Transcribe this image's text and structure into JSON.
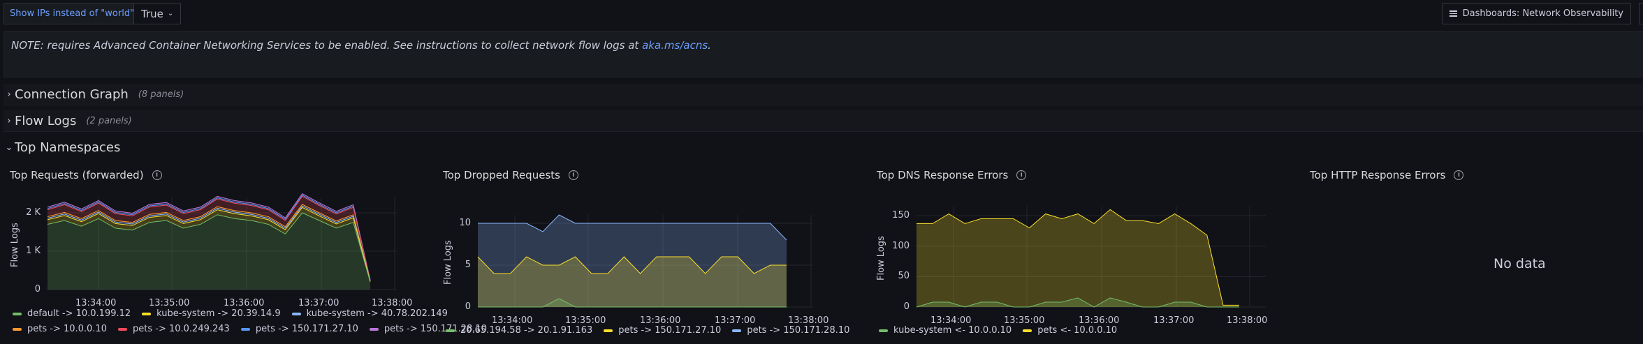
{
  "toolbar": {
    "variable_label": "Show IPs instead of \"world\"",
    "variable_value": "True",
    "dashboard_link": "Dashboards: Network Observability"
  },
  "note": {
    "text": "NOTE: requires Advanced Container Networking Services to be enabled. See instructions to collect network flow logs at ",
    "link": "aka.ms/acns",
    "suffix": "."
  },
  "rows": [
    {
      "title": "Connection Graph",
      "count": "(8 panels)",
      "collapsed": true
    },
    {
      "title": "Flow Logs",
      "count": "(2 panels)",
      "collapsed": true
    },
    {
      "title": "Top Namespaces",
      "count": "",
      "collapsed": false
    }
  ],
  "panels": [
    {
      "title": "Top Requests (forwarded)",
      "ylabel": "Flow Logs"
    },
    {
      "title": "Top Dropped Requests",
      "ylabel": "Flow Logs"
    },
    {
      "title": "Top DNS Response Errors",
      "ylabel": "Flow Logs"
    },
    {
      "title": "Top HTTP Response Errors",
      "no_data": "No data"
    }
  ],
  "chart_data": [
    {
      "type": "area",
      "title": "Top Requests (forwarded)",
      "ylabel": "Flow Logs",
      "ylim": [
        0,
        2400
      ],
      "yticks": [
        "0",
        "1 K",
        "2 K"
      ],
      "xticks": [
        "13:34:00",
        "13:35:00",
        "13:36:00",
        "13:37:00",
        "13:38:00"
      ],
      "stacked": true,
      "x": [
        0,
        1,
        2,
        3,
        4,
        5,
        6,
        7,
        8,
        9,
        10,
        11,
        12,
        13,
        14,
        15,
        16,
        17,
        18,
        19
      ],
      "series": [
        {
          "name": "default -> 10.0.199.12",
          "color": "#73bf69",
          "values": [
            1700,
            1800,
            1650,
            1850,
            1600,
            1550,
            1750,
            1800,
            1600,
            1700,
            1950,
            1850,
            1800,
            1700,
            1450,
            2000,
            1800,
            1600,
            1750,
            200
          ]
        },
        {
          "name": "kube-system -> 20.39.14.9",
          "color": "#fade2a",
          "values": [
            120,
            130,
            120,
            130,
            120,
            120,
            130,
            130,
            120,
            120,
            130,
            130,
            120,
            120,
            110,
            140,
            120,
            110,
            120,
            10
          ]
        },
        {
          "name": "kube-system -> 40.78.202.149",
          "color": "#8ab8ff",
          "values": [
            40,
            40,
            40,
            40,
            40,
            40,
            40,
            40,
            40,
            40,
            40,
            40,
            40,
            40,
            40,
            40,
            40,
            40,
            40,
            5
          ]
        },
        {
          "name": "pets -> 10.0.0.10",
          "color": "#ff9830",
          "values": [
            40,
            40,
            40,
            40,
            40,
            40,
            40,
            40,
            40,
            40,
            40,
            40,
            40,
            40,
            40,
            40,
            40,
            40,
            40,
            5
          ]
        },
        {
          "name": "pets -> 10.0.249.243",
          "color": "#f2495c",
          "values": [
            180,
            200,
            180,
            190,
            180,
            170,
            190,
            190,
            180,
            180,
            200,
            190,
            190,
            180,
            160,
            210,
            190,
            180,
            190,
            20
          ]
        },
        {
          "name": "pets -> 150.171.27.10",
          "color": "#5794f2",
          "values": [
            30,
            30,
            30,
            30,
            30,
            30,
            30,
            30,
            30,
            30,
            30,
            30,
            30,
            30,
            30,
            30,
            30,
            30,
            30,
            5
          ]
        },
        {
          "name": "pets -> 150.171.28.10",
          "color": "#b877d9",
          "values": [
            40,
            40,
            40,
            40,
            40,
            40,
            40,
            40,
            40,
            40,
            40,
            40,
            40,
            40,
            40,
            40,
            40,
            40,
            40,
            5
          ]
        }
      ]
    },
    {
      "type": "area",
      "title": "Top Dropped Requests",
      "ylabel": "Flow Logs",
      "ylim": [
        0,
        11
      ],
      "yticks": [
        "0",
        "5",
        "10"
      ],
      "xticks": [
        "13:34:00",
        "13:35:00",
        "13:36:00",
        "13:37:00",
        "13:38:00"
      ],
      "stacked": false,
      "x": [
        0,
        1,
        2,
        3,
        4,
        5,
        6,
        7,
        8,
        9,
        10,
        11,
        12,
        13,
        14,
        15,
        16,
        17,
        18,
        19
      ],
      "series": [
        {
          "name": "20.65.194.58 -> 20.1.91.163",
          "color": "#73bf69",
          "values": [
            0,
            0,
            0,
            0,
            0,
            1,
            0,
            0,
            0,
            0,
            0,
            0,
            0,
            0,
            0,
            0,
            0,
            0,
            0,
            0
          ]
        },
        {
          "name": "pets -> 150.171.27.10",
          "color": "#fade2a",
          "values": [
            6,
            4,
            4,
            6,
            5,
            5,
            6,
            4,
            4,
            6,
            4,
            6,
            6,
            6,
            4,
            6,
            6,
            4,
            5,
            5
          ]
        },
        {
          "name": "pets -> 150.171.28.10",
          "color": "#8ab8ff",
          "values": [
            10,
            10,
            10,
            10,
            9,
            11,
            10,
            10,
            10,
            10,
            10,
            10,
            10,
            10,
            10,
            10,
            10,
            10,
            10,
            8
          ]
        }
      ]
    },
    {
      "type": "area",
      "title": "Top DNS Response Errors",
      "ylabel": "Flow Logs",
      "ylim": [
        0,
        165
      ],
      "yticks": [
        "0",
        "50",
        "100",
        "150"
      ],
      "xticks": [
        "13:34:00",
        "13:35:00",
        "13:36:00",
        "13:37:00",
        "13:38:00"
      ],
      "stacked": false,
      "x": [
        0,
        1,
        2,
        3,
        4,
        5,
        6,
        7,
        8,
        9,
        10,
        11,
        12,
        13,
        14,
        15,
        16,
        17,
        18,
        19,
        20
      ],
      "series": [
        {
          "name": "kube-system <- 10.0.0.10",
          "color": "#73bf69",
          "values": [
            0,
            8,
            8,
            0,
            8,
            8,
            0,
            0,
            8,
            8,
            15,
            0,
            15,
            8,
            0,
            0,
            8,
            8,
            0,
            0,
            0
          ]
        },
        {
          "name": "pets <- 10.0.0.10",
          "color": "#fade2a",
          "values": [
            137,
            137,
            153,
            137,
            145,
            145,
            145,
            130,
            153,
            145,
            153,
            137,
            160,
            142,
            142,
            137,
            153,
            137,
            118,
            3,
            3
          ]
        }
      ]
    }
  ]
}
